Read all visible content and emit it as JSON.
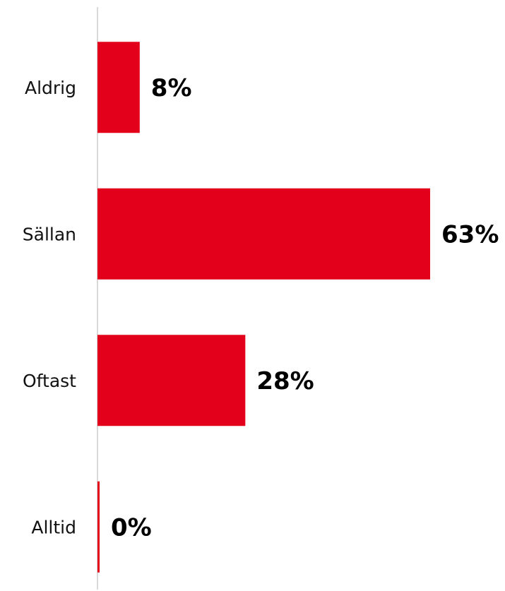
{
  "chart_data": {
    "type": "bar",
    "orientation": "horizontal",
    "categories": [
      "Aldrig",
      "Sällan",
      "Oftast",
      "Alltid"
    ],
    "values": [
      8,
      63,
      28,
      0
    ],
    "value_labels": [
      "8%",
      "63%",
      "28%",
      "0%"
    ],
    "unit": "%",
    "xlim": [
      0,
      63
    ],
    "grid": false,
    "legend": "none",
    "bar_color": "#e2001a",
    "axis_color": "#d9d9d9",
    "label_color": "#111111",
    "value_label_color": "#000000"
  }
}
